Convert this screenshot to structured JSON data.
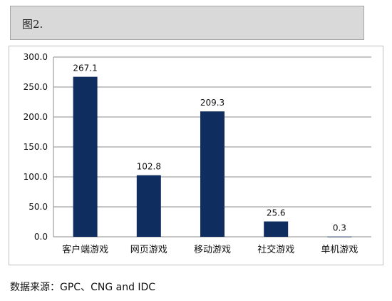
{
  "header": {
    "title": "图2."
  },
  "chart_data": {
    "type": "bar",
    "categories": [
      "客户端游戏",
      "网页游戏",
      "移动游戏",
      "社交游戏",
      "单机游戏"
    ],
    "values": [
      267.1,
      102.8,
      209.3,
      25.6,
      0.3
    ],
    "value_labels": [
      "267.1",
      "102.8",
      "209.3",
      "25.6",
      "0.3"
    ],
    "ylim": [
      0,
      300
    ],
    "yticks": [
      "0.0",
      "50.0",
      "100.0",
      "150.0",
      "200.0",
      "250.0",
      "300.0"
    ],
    "grid": true,
    "bar_color": "#0f2d5e",
    "title": "",
    "xlabel": "",
    "ylabel": ""
  },
  "source": {
    "text": "数据来源：GPC、CNG and IDC"
  }
}
